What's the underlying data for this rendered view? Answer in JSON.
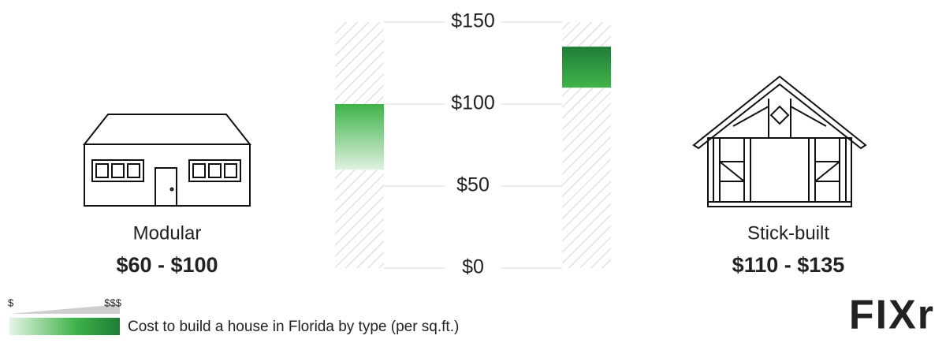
{
  "chart_data": {
    "type": "range_bar",
    "categories": [
      "Modular",
      "Stick-built"
    ],
    "low": [
      60,
      110
    ],
    "high": [
      100,
      135
    ],
    "value_labels": [
      "$60 - $100",
      "$110 - $135"
    ],
    "ylim": [
      0,
      150
    ],
    "yticks": [
      {
        "value": 0,
        "label": "$0"
      },
      {
        "value": 50,
        "label": "$50"
      },
      {
        "value": 100,
        "label": "$100"
      },
      {
        "value": 150,
        "label": "$150"
      }
    ],
    "grid": true,
    "legend": {
      "low_label": "$",
      "high_label": "$$$"
    },
    "caption": "Cost to build a house in Florida by type (per sq.ft.)",
    "logo": "FIXr"
  }
}
